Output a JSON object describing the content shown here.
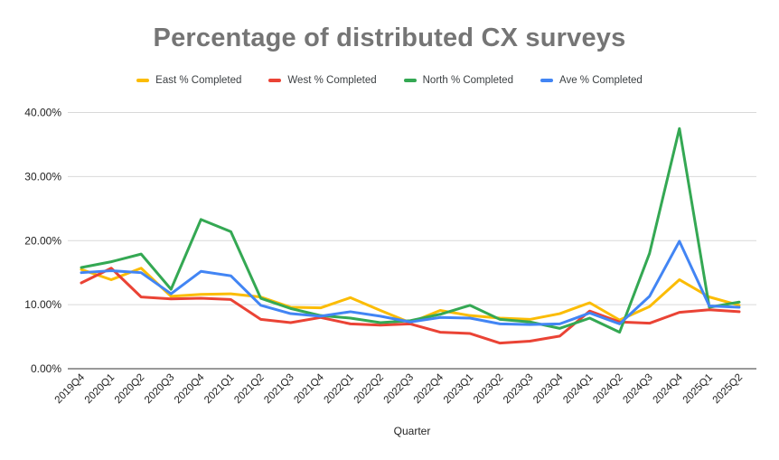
{
  "title": "Percentage of distributed CX surveys",
  "x_axis_label": "Quarter",
  "legend": [
    {
      "label": "East % Completed",
      "color": "#FBBC04"
    },
    {
      "label": "West % Completed",
      "color": "#EA4335"
    },
    {
      "label": "North % Completed",
      "color": "#34A853"
    },
    {
      "label": "Ave % Completed",
      "color": "#4285F4"
    }
  ],
  "colors": {
    "gridline": "#d9d9d9",
    "axis_line": "#333333",
    "tick_label": "#222222",
    "title": "#757575",
    "legend_text": "#3c4043",
    "background": "#ffffff"
  },
  "chart_data": {
    "type": "line",
    "title": "Percentage of distributed CX surveys",
    "xlabel": "Quarter",
    "ylabel": "",
    "ylim": [
      0,
      40
    ],
    "yticks": [
      "0.00%",
      "10.00%",
      "20.00%",
      "30.00%",
      "40.00%"
    ],
    "grid": true,
    "legend_position": "top",
    "categories": [
      "2019Q4",
      "2020Q1",
      "2020Q2",
      "2020Q3",
      "2020Q4",
      "2021Q1",
      "2021Q2",
      "2021Q3",
      "2021Q4",
      "2022Q1",
      "2022Q2",
      "2022Q3",
      "2022Q4",
      "2023Q1",
      "2023Q2",
      "2023Q3",
      "2023Q4",
      "2024Q1",
      "2024Q2",
      "2024Q3",
      "2024Q4",
      "2025Q1",
      "2025Q2"
    ],
    "series": [
      {
        "name": "East % Completed",
        "color": "#FBBC04",
        "values": [
          15.5,
          13.9,
          15.7,
          11.3,
          11.6,
          11.7,
          11.2,
          9.6,
          9.5,
          11.1,
          9.1,
          7.2,
          9.1,
          8.3,
          7.9,
          7.7,
          8.6,
          10.3,
          7.6,
          9.7,
          13.9,
          11.2,
          9.9
        ]
      },
      {
        "name": "West % Completed",
        "color": "#EA4335",
        "values": [
          13.4,
          15.7,
          11.2,
          10.9,
          11.0,
          10.8,
          7.7,
          7.2,
          8.0,
          7.0,
          6.8,
          7.0,
          5.7,
          5.5,
          4.0,
          4.3,
          5.1,
          9.0,
          7.3,
          7.1,
          8.8,
          9.2,
          8.9
        ]
      },
      {
        "name": "North % Completed",
        "color": "#34A853",
        "values": [
          15.8,
          16.7,
          17.9,
          12.4,
          23.3,
          21.4,
          11.0,
          9.4,
          8.3,
          7.9,
          7.2,
          7.5,
          8.5,
          9.9,
          7.7,
          7.3,
          6.3,
          7.9,
          5.7,
          18.0,
          37.5,
          9.6,
          10.4
        ]
      },
      {
        "name": "Ave % Completed",
        "color": "#4285F4",
        "values": [
          15.0,
          15.3,
          15.0,
          11.7,
          15.2,
          14.5,
          9.9,
          8.6,
          8.2,
          8.9,
          8.2,
          7.3,
          8.0,
          7.9,
          7.0,
          6.9,
          7.0,
          8.7,
          7.0,
          11.3,
          19.9,
          9.8,
          9.6
        ]
      }
    ]
  }
}
